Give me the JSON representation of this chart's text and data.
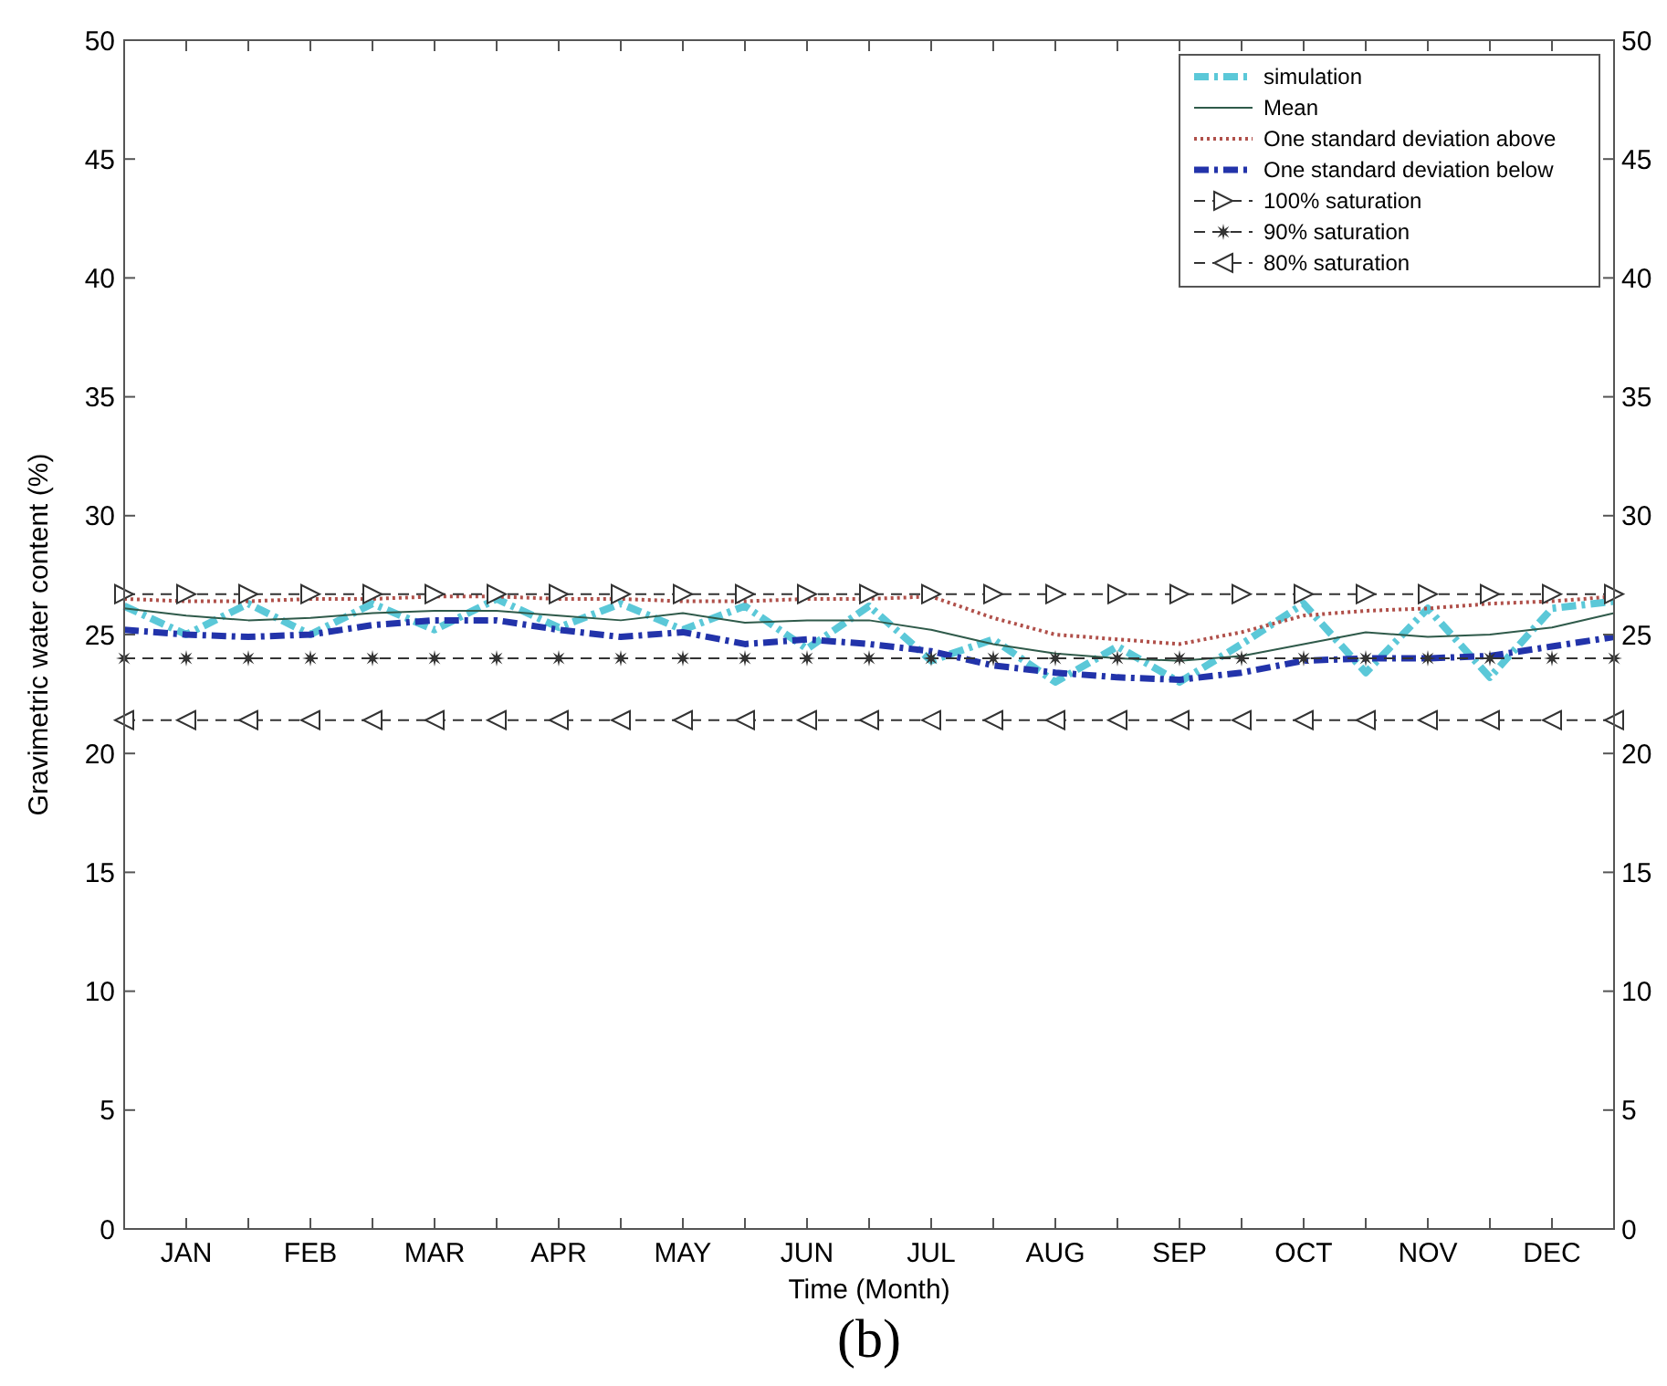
{
  "chart_data": {
    "type": "line",
    "title": "(b)",
    "xlabel": "Time (Month)",
    "ylabel": "Gravimetric water content (%)",
    "categories": [
      null,
      "JAN",
      null,
      "FEB",
      null,
      "MAR",
      null,
      "APR",
      null,
      "MAY",
      null,
      "JUN",
      null,
      "JUL",
      null,
      "AUG",
      null,
      "SEP",
      null,
      "OCT",
      null,
      "NOV",
      null,
      "DEC",
      null
    ],
    "ylim": [
      0,
      50
    ],
    "yticks": [
      0,
      5,
      10,
      15,
      20,
      25,
      30,
      35,
      40,
      45,
      50
    ],
    "y2lim": [
      0,
      50
    ],
    "y2ticks": [
      0,
      5,
      10,
      15,
      20,
      25,
      30,
      35,
      40,
      45,
      50
    ],
    "grid": false,
    "legend": "top right",
    "series": [
      {
        "name": "simulation",
        "color": "#5bc8d8",
        "line_style": "dashdot",
        "marker": "none",
        "values": [
          26.2,
          25.0,
          26.3,
          25.0,
          26.3,
          25.2,
          26.5,
          25.3,
          26.3,
          25.2,
          26.2,
          24.4,
          26.2,
          23.9,
          24.8,
          23.0,
          24.5,
          23.0,
          24.6,
          26.3,
          23.4,
          26.1,
          23.2,
          26.1,
          26.4
        ]
      },
      {
        "name": "Mean",
        "color": "#2f5a4a",
        "line_style": "solid",
        "marker": "none",
        "values": [
          26.1,
          25.8,
          25.6,
          25.7,
          25.9,
          26.0,
          26.0,
          25.8,
          25.6,
          25.9,
          25.5,
          25.6,
          25.6,
          25.2,
          24.6,
          24.2,
          24.0,
          23.9,
          24.1,
          24.6,
          25.1,
          24.9,
          25.0,
          25.3,
          25.9
        ]
      },
      {
        "name": "One standard deviation above",
        "color": "#b0504a",
        "line_style": "dotted",
        "marker": "none",
        "values": [
          26.5,
          26.4,
          26.4,
          26.5,
          26.5,
          26.6,
          26.6,
          26.5,
          26.5,
          26.4,
          26.4,
          26.5,
          26.5,
          26.6,
          25.7,
          25.0,
          24.8,
          24.6,
          25.1,
          25.8,
          26.0,
          26.1,
          26.3,
          26.4,
          26.6
        ]
      },
      {
        "name": "One standard deviation below",
        "color": "#2233aa",
        "line_style": "dashdot",
        "marker": "none",
        "values": [
          25.2,
          25.0,
          24.9,
          25.0,
          25.4,
          25.6,
          25.6,
          25.2,
          24.9,
          25.1,
          24.6,
          24.8,
          24.6,
          24.3,
          23.7,
          23.4,
          23.2,
          23.1,
          23.4,
          23.9,
          24.0,
          24.0,
          24.1,
          24.5,
          24.9
        ]
      },
      {
        "name": "100% saturation",
        "color": "#333333",
        "line_style": "dashed",
        "marker": "triangle-right",
        "values": [
          26.7,
          26.7,
          26.7,
          26.7,
          26.7,
          26.7,
          26.7,
          26.7,
          26.7,
          26.7,
          26.7,
          26.7,
          26.7,
          26.7,
          26.7,
          26.7,
          26.7,
          26.7,
          26.7,
          26.7,
          26.7,
          26.7,
          26.7,
          26.7,
          26.7
        ]
      },
      {
        "name": "90% saturation",
        "color": "#333333",
        "line_style": "dashed",
        "marker": "star",
        "values": [
          24.0,
          24.0,
          24.0,
          24.0,
          24.0,
          24.0,
          24.0,
          24.0,
          24.0,
          24.0,
          24.0,
          24.0,
          24.0,
          24.0,
          24.0,
          24.0,
          24.0,
          24.0,
          24.0,
          24.0,
          24.0,
          24.0,
          24.0,
          24.0,
          24.0
        ]
      },
      {
        "name": "80% saturation",
        "color": "#333333",
        "line_style": "dashed",
        "marker": "triangle-left",
        "values": [
          21.4,
          21.4,
          21.4,
          21.4,
          21.4,
          21.4,
          21.4,
          21.4,
          21.4,
          21.4,
          21.4,
          21.4,
          21.4,
          21.4,
          21.4,
          21.4,
          21.4,
          21.4,
          21.4,
          21.4,
          21.4,
          21.4,
          21.4,
          21.4,
          21.4
        ]
      }
    ]
  }
}
